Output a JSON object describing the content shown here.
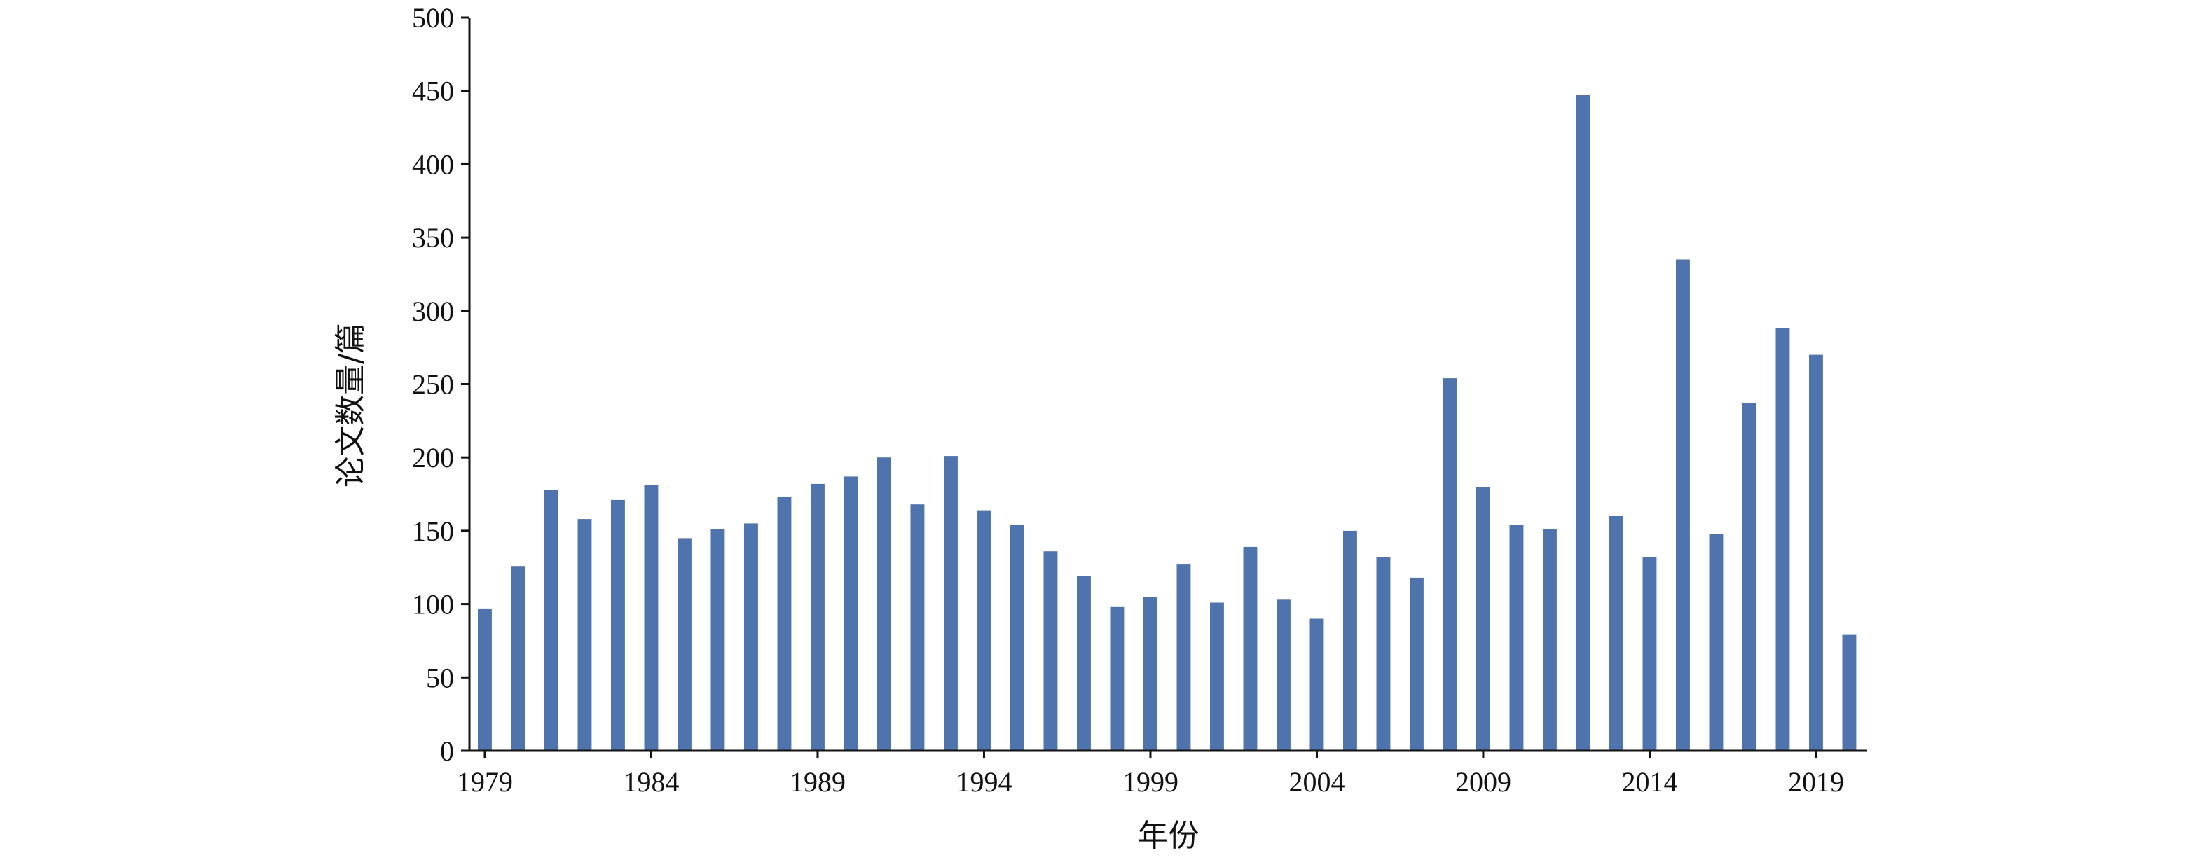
{
  "chart_data": {
    "type": "bar",
    "title": "",
    "xlabel": "年份",
    "ylabel": "论文数量/篇",
    "ylim": [
      0,
      500
    ],
    "yticks": [
      "0",
      "50",
      "100",
      "150",
      "200",
      "250",
      "300",
      "350",
      "400",
      "450",
      "500"
    ],
    "xticks": [
      "1979",
      "1984",
      "1989",
      "1994",
      "1999",
      "2004",
      "2009",
      "2014",
      "2019"
    ],
    "grid": false,
    "legend": "none",
    "bar_color": "#4f73ac",
    "categories": [
      "1979",
      "1980",
      "1981",
      "1982",
      "1983",
      "1984",
      "1985",
      "1986",
      "1987",
      "1988",
      "1989",
      "1990",
      "1991",
      "1992",
      "1993",
      "1994",
      "1995",
      "1996",
      "1997",
      "1998",
      "1999",
      "2000",
      "2001",
      "2002",
      "2003",
      "2004",
      "2005",
      "2006",
      "2007",
      "2008",
      "2009",
      "2010",
      "2011",
      "2012",
      "2013",
      "2014",
      "2015",
      "2016",
      "2017",
      "2018",
      "2019",
      "2020"
    ],
    "values": [
      97,
      126,
      178,
      158,
      171,
      181,
      145,
      151,
      155,
      173,
      182,
      187,
      200,
      168,
      201,
      164,
      154,
      136,
      119,
      98,
      105,
      127,
      101,
      139,
      103,
      90,
      150,
      132,
      118,
      254,
      180,
      154,
      151,
      447,
      160,
      132,
      335,
      148,
      237,
      288,
      270,
      79
    ]
  }
}
